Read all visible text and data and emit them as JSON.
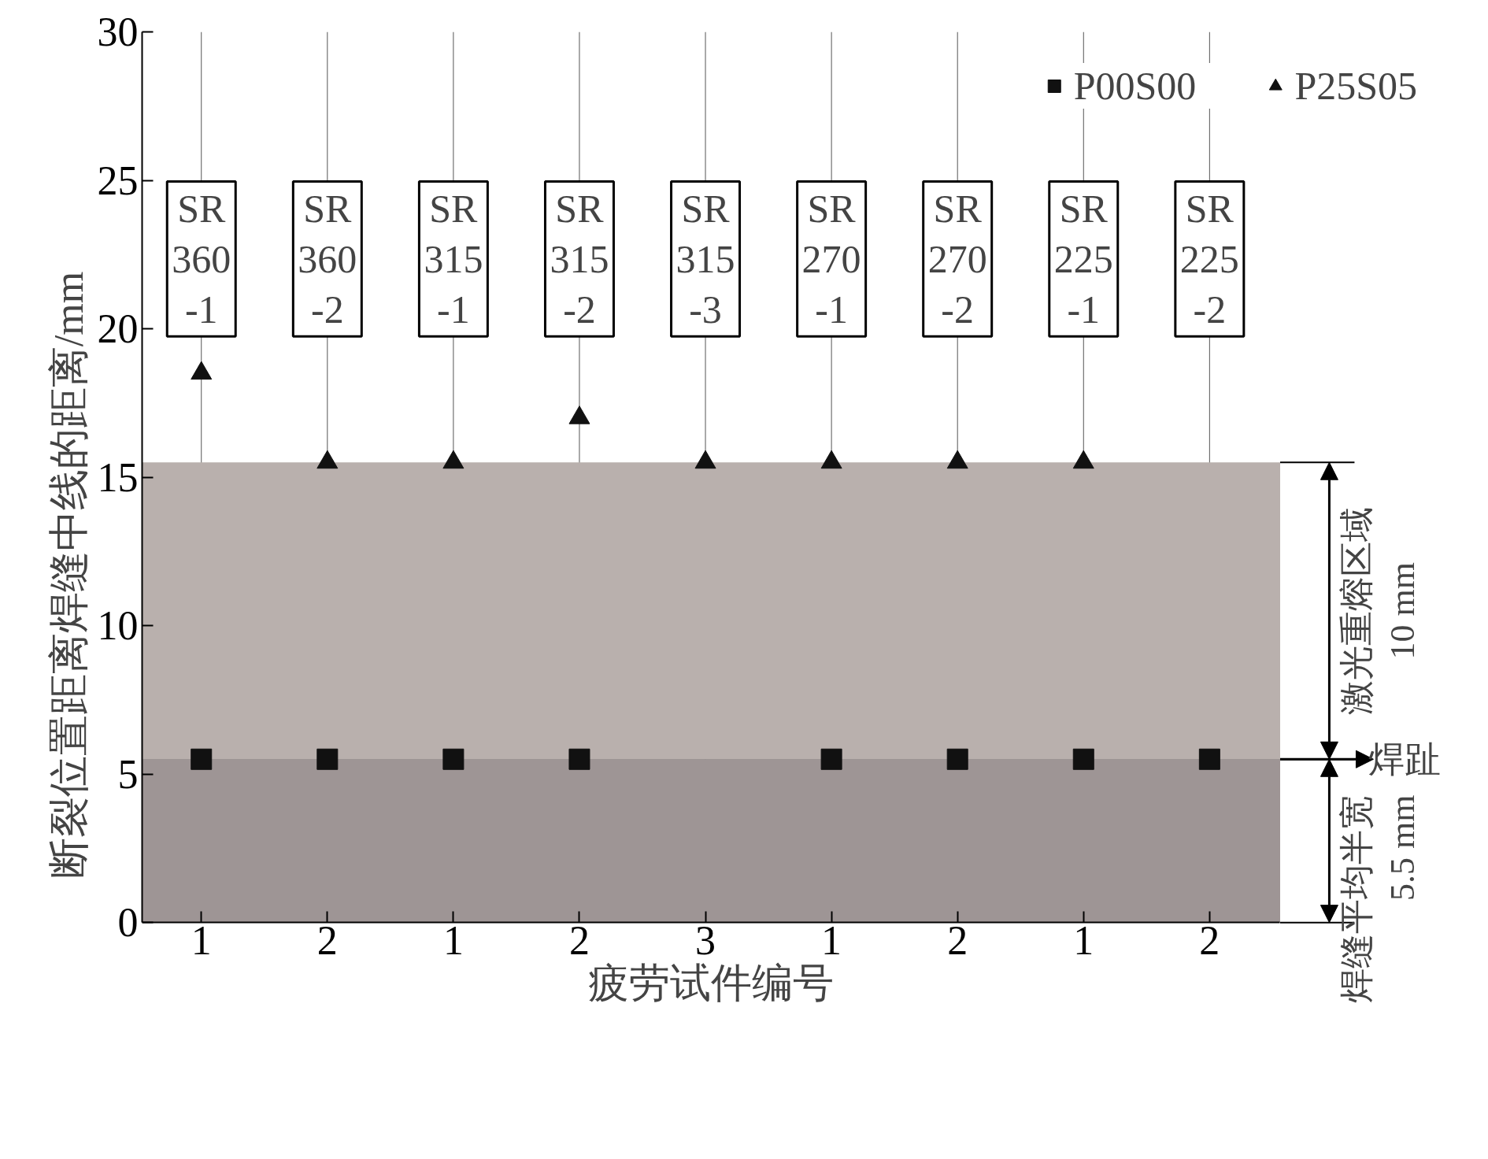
{
  "chart_data": {
    "type": "scatter",
    "xlabel": "疲劳试件编号",
    "ylabel": "断裂位置距离焊缝中线的距离/mm",
    "categories": [
      "1",
      "2",
      "1",
      "2",
      "3",
      "1",
      "2",
      "1",
      "2"
    ],
    "series": [
      {
        "name": "P00S00",
        "color": "#111111",
        "marker": "square",
        "values": [
          5.5,
          5.5,
          5.5,
          5.5,
          null,
          5.5,
          5.5,
          5.5,
          5.5
        ]
      },
      {
        "name": "P25S05",
        "color": "#111111",
        "marker": "triangle",
        "values": [
          18.5,
          15.5,
          15.5,
          17,
          15.5,
          15.5,
          15.5,
          15.5,
          null
        ]
      }
    ],
    "ylim": [
      0,
      30
    ],
    "yticks": [
      0,
      5,
      10,
      15,
      20,
      25,
      30
    ],
    "grid": "x",
    "legend": "top right",
    "bands": [
      {
        "axis": "y",
        "from": 0,
        "to": 5.5,
        "label": "焊缝平均半宽\n5.5 mm",
        "color": "#9e9595"
      },
      {
        "axis": "y",
        "from": 5.5,
        "to": 15.5,
        "label": "激光重熔区域\n10 mm",
        "color": "#b9b0ad"
      }
    ],
    "ref_lines": [
      {
        "axis": "y",
        "value": 5.5,
        "label": "焊趾",
        "color": "#777777"
      }
    ],
    "annotations": [
      "SR\n360\n-1",
      "SR\n360\n-2",
      "SR\n315\n-1",
      "SR\n315\n-2",
      "SR\n315\n-3",
      "SR\n270\n-1",
      "SR\n270\n-2",
      "SR\n225\n-1",
      "SR\n225\n-2"
    ]
  }
}
